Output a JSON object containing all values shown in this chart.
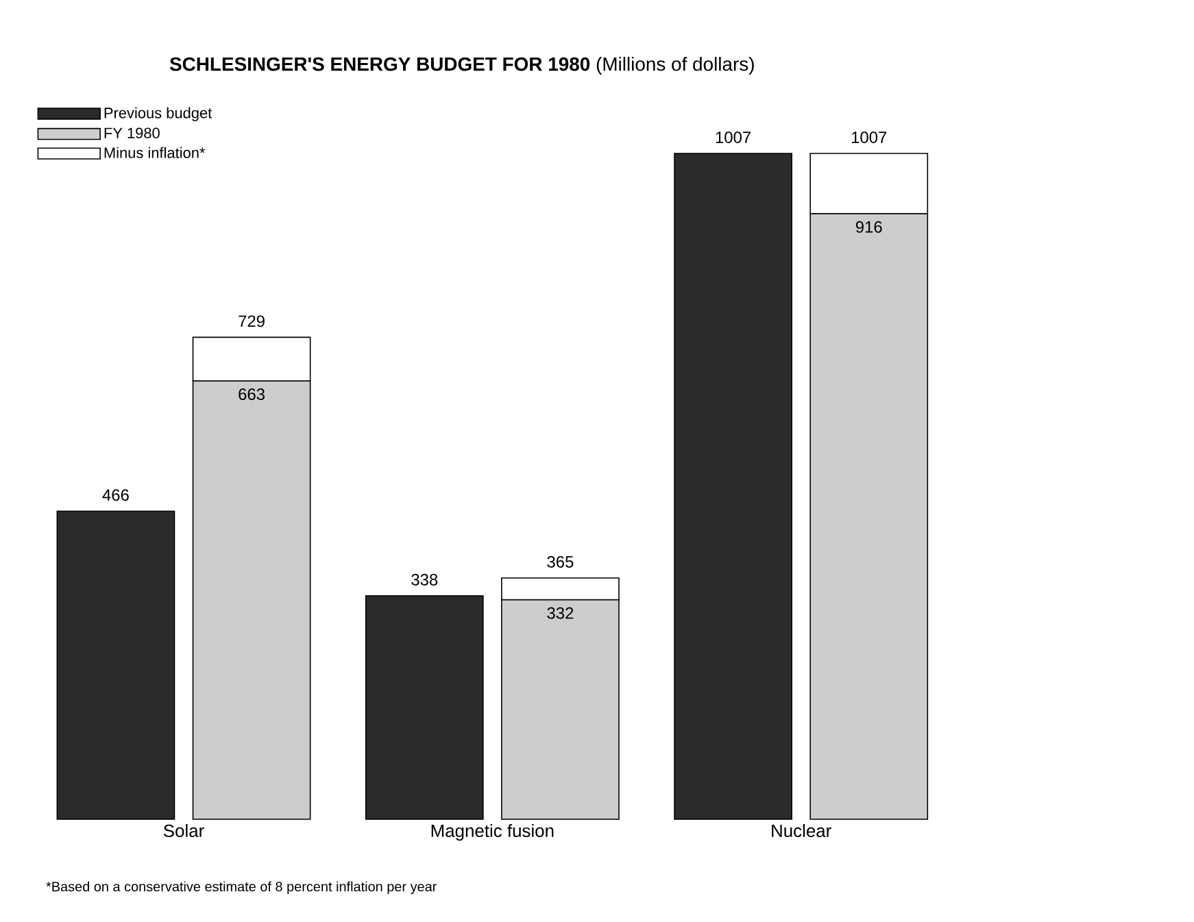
{
  "chart_data": [
    {
      "type": "bar",
      "title": "**SCHLESINGER'S ENERGY BUDGET FOR 1980** (Millions of dollars)",
      "categories": [
        "Solar",
        "Magnetic fusion",
        "Nuclear"
      ],
      "series": [
        {
          "name": "Previous budget",
          "color": "#2b2b2b",
          "values": [
            466,
            338,
            1007
          ],
          "value_labels": [
            "466",
            "338",
            "1007"
          ]
        }
      ],
      "legend": "top left",
      "annotations": [
        "*Based on a conservative estimate of 8 percent inflation per year"
      ]
    },
    {
      "type": "bar",
      "stacked": true,
      "categories": [
        null,
        null,
        null
      ],
      "series": [
        {
          "name": "FY 1980",
          "color": "#cdcdcd",
          "values": [
            663,
            332,
            916
          ],
          "value_labels": [
            "663",
            "332",
            "916"
          ]
        },
        {
          "name": "Minus inflation*",
          "color": "#ffffff",
          "values": [
            66,
            33,
            91
          ]
        }
      ],
      "totals": [
        "729",
        "365",
        "1007"
      ],
      "legend": "top left"
    }
  ]
}
